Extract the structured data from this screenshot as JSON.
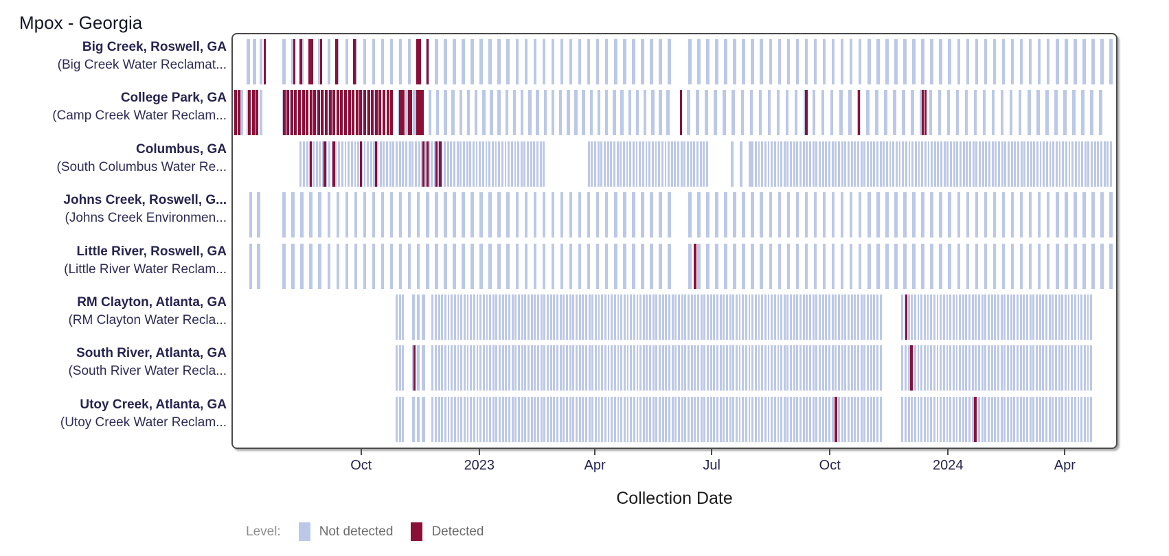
{
  "page": {
    "title": "Mpox - Georgia",
    "x_axis_title": "Collection Date",
    "legend_title": "Level:"
  },
  "chart_data": {
    "type": "timeline",
    "title": "Mpox - Georgia",
    "xlabel": "Collection Date",
    "ylabel": "",
    "x_domain": [
      "2022-06-22",
      "2024-05-12"
    ],
    "grid": false,
    "legend_position": "bottom-left",
    "colors": {
      "not_detected": "#bcc8e7",
      "detected": "#8a1038"
    },
    "legend": {
      "title": "Level:",
      "items": [
        {
          "label": "Not detected",
          "color": "#bcc8e7"
        },
        {
          "label": "Detected",
          "color": "#8a1038"
        }
      ]
    },
    "x_ticks": [
      {
        "label": "Oct",
        "date": "2022-10-01"
      },
      {
        "label": "2023",
        "date": "2023-01-01"
      },
      {
        "label": "Apr",
        "date": "2023-04-01"
      },
      {
        "label": "Jul",
        "date": "2023-07-01"
      },
      {
        "label": "Oct",
        "date": "2023-10-01"
      },
      {
        "label": "2024",
        "date": "2024-01-01"
      },
      {
        "label": "Apr",
        "date": "2024-04-01"
      }
    ],
    "rows": [
      {
        "name": "Big Creek, Roswell, GA",
        "facility": "(Big Creek Water Reclamat...",
        "segments": [
          {
            "start": "2022-07-04",
            "end": "2022-07-16",
            "interval_days": 5
          },
          {
            "start": "2022-08-01",
            "end": "2023-05-31",
            "interval_days": 7
          },
          {
            "start": "2023-06-14",
            "end": "2024-05-08",
            "interval_days": 7
          }
        ],
        "detected": [
          "2022-07-17",
          "2022-08-09",
          "2022-08-14",
          "2022-08-21",
          "2022-08-23",
          "2022-08-30",
          "2022-09-11",
          "2022-09-25",
          "2022-11-13",
          "2022-11-15",
          "2022-11-21"
        ]
      },
      {
        "name": "College Park, GA",
        "facility": "(Camp Creek Water Reclam...",
        "segments": [
          {
            "start": "2022-06-24",
            "end": "2022-07-16",
            "interval_days": 5
          },
          {
            "start": "2022-08-01",
            "end": "2023-05-31",
            "interval_days": 6
          },
          {
            "start": "2023-06-13",
            "end": "2024-05-02",
            "interval_days": 7
          }
        ],
        "detected_ranges": [
          {
            "start": "2022-06-24",
            "end": "2022-06-29",
            "interval_days": 3
          },
          {
            "start": "2022-07-05",
            "end": "2022-07-12",
            "interval_days": 3
          },
          {
            "start": "2022-08-01",
            "end": "2022-10-24",
            "interval_days": 3
          }
        ],
        "detected": [
          "2022-10-31",
          "2022-11-02",
          "2022-11-07",
          "2022-11-08",
          "2022-11-13",
          "2022-11-15",
          "2022-11-17",
          "2023-06-07",
          "2023-09-13",
          "2023-10-24",
          "2023-12-13",
          "2023-12-15"
        ]
      },
      {
        "name": "Columbus, GA",
        "facility": "(South Columbus Water Re...",
        "segments": [
          {
            "start": "2022-08-14",
            "end": "2023-02-21",
            "interval_days": 2.5
          },
          {
            "start": "2023-03-27",
            "end": "2023-06-28",
            "interval_days": 2.5
          },
          {
            "start": "2023-07-17",
            "end": "2023-07-31",
            "interval_days": 7
          },
          {
            "start": "2023-08-02",
            "end": "2024-05-08",
            "interval_days": 2.5
          }
        ],
        "detected": [
          "2022-08-22",
          "2022-09-02",
          "2022-09-09",
          "2022-09-30",
          "2022-10-12",
          "2022-11-18",
          "2022-11-21",
          "2022-11-28",
          "2022-12-01"
        ]
      },
      {
        "name": "Johns Creek, Roswell, G...",
        "facility": "(Johns Creek Environmen...",
        "segments": [
          {
            "start": "2022-07-06",
            "end": "2022-07-12",
            "interval_days": 6
          },
          {
            "start": "2022-08-01",
            "end": "2023-05-31",
            "interval_days": 7
          },
          {
            "start": "2023-06-14",
            "end": "2024-05-08",
            "interval_days": 7
          }
        ],
        "detected": []
      },
      {
        "name": "Little River, Roswell, GA",
        "facility": "(Little River Water Reclam...",
        "segments": [
          {
            "start": "2022-07-06",
            "end": "2022-07-12",
            "interval_days": 6
          },
          {
            "start": "2022-08-01",
            "end": "2023-05-31",
            "interval_days": 7
          },
          {
            "start": "2023-06-14",
            "end": "2024-05-08",
            "interval_days": 7
          }
        ],
        "detected": [
          "2023-06-18"
        ]
      },
      {
        "name": "RM Clayton, Atlanta, GA",
        "facility": "(RM Clayton Water Recla...",
        "segments": [
          {
            "start": "2022-10-28",
            "end": "2022-11-03",
            "interval_days": 2.5
          },
          {
            "start": "2022-11-10",
            "end": "2022-11-18",
            "interval_days": 4
          },
          {
            "start": "2022-11-25",
            "end": "2023-11-12",
            "interval_days": 2.5
          },
          {
            "start": "2023-11-27",
            "end": "2024-04-23",
            "interval_days": 2.5
          }
        ],
        "detected": [
          "2023-11-30"
        ]
      },
      {
        "name": "South River, Atlanta, GA",
        "facility": "(South River Water Recla...",
        "segments": [
          {
            "start": "2022-10-28",
            "end": "2022-11-03",
            "interval_days": 2.5
          },
          {
            "start": "2022-11-10",
            "end": "2022-11-18",
            "interval_days": 4
          },
          {
            "start": "2022-11-25",
            "end": "2023-11-12",
            "interval_days": 2.5
          },
          {
            "start": "2023-11-27",
            "end": "2024-04-23",
            "interval_days": 2.5
          }
        ],
        "detected": [
          "2022-11-11",
          "2023-12-04"
        ]
      },
      {
        "name": "Utoy Creek, Atlanta, GA",
        "facility": "(Utoy Creek Water Reclam...",
        "segments": [
          {
            "start": "2022-10-28",
            "end": "2022-11-03",
            "interval_days": 2.5
          },
          {
            "start": "2022-11-10",
            "end": "2022-11-18",
            "interval_days": 4
          },
          {
            "start": "2022-11-25",
            "end": "2023-11-12",
            "interval_days": 2.5
          },
          {
            "start": "2023-11-27",
            "end": "2024-04-23",
            "interval_days": 2.5
          }
        ],
        "detected": [
          "2023-10-06",
          "2024-01-23"
        ]
      }
    ]
  }
}
